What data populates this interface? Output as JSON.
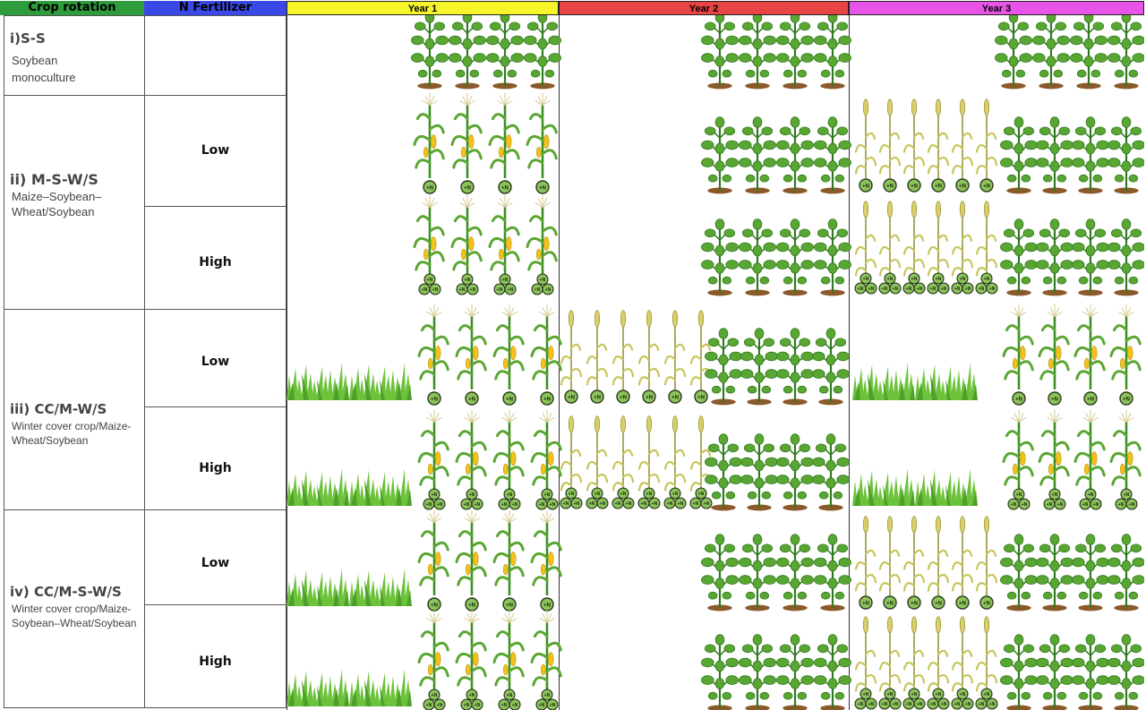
{
  "headers": {
    "crop_rotation": "Crop rotation",
    "n_fertilizer": "N Fertilizer",
    "year1": "Year 1",
    "year2": "Year 2",
    "year3": "Year 3"
  },
  "header_colors": {
    "crop_rotation": "#2e9b3c",
    "n_fertilizer": "#3a49e6",
    "year1": "#f5f52a",
    "year2": "#e84444",
    "year3": "#e854e8"
  },
  "rotations": [
    {
      "code": "i)S-S",
      "description": "Soybean monoculture"
    },
    {
      "code": "ii)  M-S-W/S",
      "description": "Maize–Soybean–Wheat/Soybean"
    },
    {
      "code": "iii)  CC/M-W/S",
      "description": "Winter cover crop/Maize-Wheat/Soybean"
    },
    {
      "code": "iv)  CC/M-S-W/S",
      "description": "Winter cover crop/Maize-Soybean–Wheat/Soybean"
    }
  ],
  "n_levels": {
    "low": "Low",
    "high": "High"
  },
  "n_badge": "+N",
  "icons": [
    "soybean-plant-icon",
    "maize-plant-icon",
    "wheat-plant-icon",
    "grass-cover-crop-icon",
    "nitrogen-badge-icon"
  ],
  "plant_colors": {
    "leaf": "#5aa632",
    "leaf_dark": "#2f7a1e",
    "wheat": "#c8c45a",
    "wheat_dark": "#8f8c2c",
    "cob": "#f2c21a",
    "soil": "#8b5a2b",
    "badge": "#8cc35a"
  }
}
